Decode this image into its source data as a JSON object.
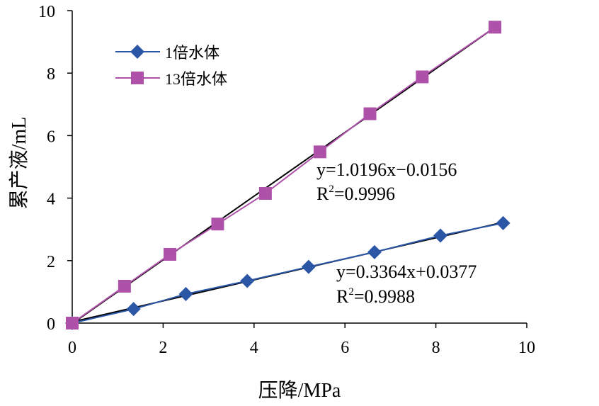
{
  "chart_data": {
    "type": "scatter",
    "xlabel": "压降/MPa",
    "ylabel": "累产液/mL",
    "xlim": [
      0,
      10
    ],
    "ylim": [
      0,
      10
    ],
    "xticks": [
      "0",
      "2",
      "4",
      "6",
      "8",
      "10"
    ],
    "yticks": [
      "0",
      "2",
      "4",
      "6",
      "8",
      "10"
    ],
    "legend_position": "top-left",
    "series": [
      {
        "name": "1倍水体",
        "marker": "diamond",
        "color": "#2b56a6",
        "x": [
          0,
          1.35,
          2.5,
          3.85,
          5.2,
          6.65,
          8.1,
          9.48
        ],
        "y": [
          0,
          0.45,
          0.93,
          1.35,
          1.8,
          2.27,
          2.8,
          3.2
        ],
        "fit": {
          "slope": 0.3364,
          "intercept": 0.0377,
          "x_range": [
            0,
            9.48
          ]
        },
        "equation": "y=0.3364x+0.0377",
        "r2_label": "R",
        "r2_sup": "2",
        "r2_value": "=0.9988"
      },
      {
        "name": "13倍水体",
        "marker": "square",
        "color": "#ad52a8",
        "x": [
          0,
          1.15,
          2.15,
          3.2,
          4.25,
          5.45,
          6.55,
          7.7,
          9.3
        ],
        "y": [
          0,
          1.18,
          2.2,
          3.17,
          4.15,
          5.48,
          6.7,
          7.88,
          9.47
        ],
        "fit": {
          "slope": 1.0196,
          "intercept": -0.0156,
          "x_range": [
            0,
            9.3
          ]
        },
        "equation": "y=1.0196x−0.0156",
        "r2_label": "R",
        "r2_sup": "2",
        "r2_value": "=0.9996"
      }
    ]
  }
}
